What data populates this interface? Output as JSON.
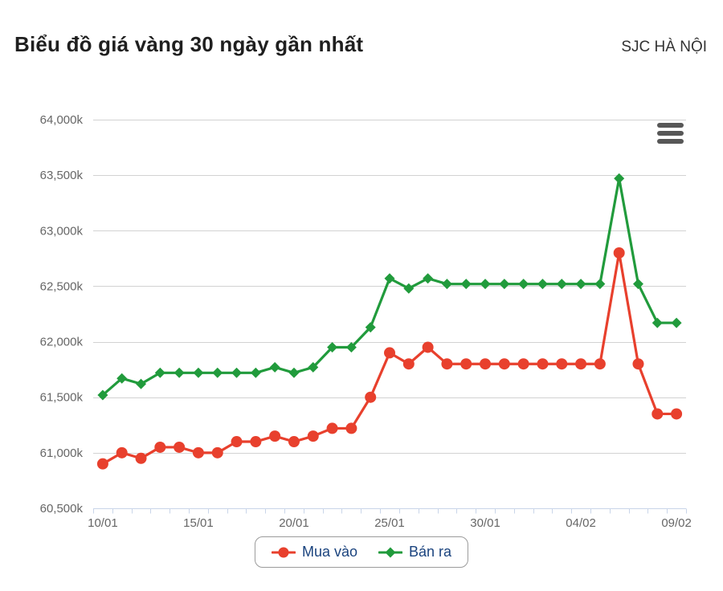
{
  "header": {
    "title": "Biểu đồ giá vàng 30 ngày gần nhất",
    "source": "SJC HÀ NỘI"
  },
  "icons": {
    "menu": "hamburger-menu-icon"
  },
  "chart_data": {
    "type": "line",
    "title": "Biểu đồ giá vàng 30 ngày gần nhất",
    "subtitle": "SJC HÀ NỘI",
    "categories": [
      "10/01",
      "11/01",
      "12/01",
      "13/01",
      "14/01",
      "15/01",
      "16/01",
      "17/01",
      "18/01",
      "19/01",
      "20/01",
      "21/01",
      "22/01",
      "23/01",
      "24/01",
      "25/01",
      "26/01",
      "27/01",
      "28/01",
      "29/01",
      "30/01",
      "31/01",
      "01/02",
      "02/02",
      "03/02",
      "04/02",
      "05/02",
      "06/02",
      "07/02",
      "08/02",
      "09/02"
    ],
    "series": [
      {
        "name": "Mua vào",
        "color": "#e8402d",
        "marker": "circle",
        "values": [
          60900,
          61000,
          60950,
          61050,
          61050,
          61000,
          61000,
          61100,
          61100,
          61150,
          61100,
          61150,
          61220,
          61220,
          61500,
          61900,
          61800,
          61950,
          61800,
          61800,
          61800,
          61800,
          61800,
          61800,
          61800,
          61800,
          61800,
          62800,
          61800,
          61350,
          61350
        ]
      },
      {
        "name": "Bán ra",
        "color": "#219b3c",
        "marker": "diamond",
        "values": [
          61520,
          61670,
          61620,
          61720,
          61720,
          61720,
          61720,
          61720,
          61720,
          61770,
          61720,
          61770,
          61950,
          61950,
          62130,
          62570,
          62480,
          62570,
          62520,
          62520,
          62520,
          62520,
          62520,
          62520,
          62520,
          62520,
          62520,
          63470,
          62520,
          62170,
          62170
        ]
      }
    ],
    "ylim": [
      60500,
      64000
    ],
    "ytick_step": 500,
    "y_tick_labels": [
      "60,500k",
      "61,000k",
      "61,500k",
      "62,000k",
      "62,500k",
      "63,000k",
      "63,500k",
      "64,000k"
    ],
    "x_tick_indices": [
      0,
      5,
      10,
      15,
      20,
      25,
      30
    ],
    "x_tick_labels": [
      "10/01",
      "15/01",
      "20/01",
      "25/01",
      "30/01",
      "04/02",
      "09/02"
    ],
    "xlabel": "",
    "ylabel": "",
    "grid": "horizontal",
    "legend_position": "bottom",
    "legend_text_color": "#1a437e",
    "axis_label_color": "#666666",
    "grid_color": "#d2d2d2",
    "axis_line_color": "#c9d5e9"
  }
}
